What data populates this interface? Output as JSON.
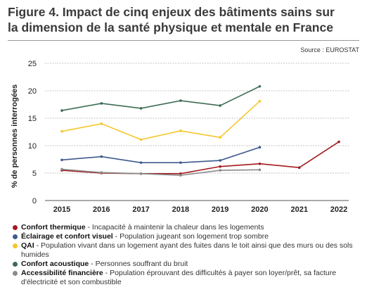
{
  "header": {
    "title_line1": "Figure 4. Impact de cinq enjeux des bâtiments sains sur",
    "title_line2": "la dimension de la santé physique et mentale en France",
    "source": "Source : EUROSTAT"
  },
  "chart_data": {
    "type": "line",
    "title": "Figure 4. Impact de cinq enjeux des bâtiments sains sur la dimension de la santé physique et mentale en France",
    "xlabel": "",
    "ylabel": "% de personnes interrogées",
    "x": [
      "2015",
      "2016",
      "2017",
      "2018",
      "2019",
      "2020",
      "2021",
      "2022"
    ],
    "ylim": [
      0,
      25
    ],
    "yticks": [
      0,
      5,
      10,
      15,
      20,
      25
    ],
    "grid": "horizontal-dotted",
    "legend_position": "bottom",
    "series": [
      {
        "name": "Confort thermique",
        "desc": "Incapacité à maintenir la chaleur dans les logements",
        "color": "#a31a1f",
        "values": [
          5.5,
          5.0,
          4.9,
          4.9,
          6.2,
          6.7,
          6.0,
          10.7
        ]
      },
      {
        "name": "Éclairage et confort visuel",
        "desc": "Population jugeant son logement trop sombre",
        "color": "#3d5a8f",
        "values": [
          7.4,
          8.0,
          6.9,
          6.9,
          7.3,
          9.7,
          null,
          null
        ]
      },
      {
        "name": "QAI",
        "desc": "Population vivant dans un logement ayant des fuites dans le toit ainsi que des murs ou des sols humides",
        "color": "#f5c62b",
        "values": [
          12.6,
          14.0,
          11.1,
          12.7,
          11.5,
          18.1,
          null,
          null
        ]
      },
      {
        "name": "Confort acoustique",
        "desc": "Personnes souffrant du bruit",
        "color": "#3e6b55",
        "values": [
          16.4,
          17.7,
          16.8,
          18.2,
          17.3,
          20.8,
          null,
          null
        ]
      },
      {
        "name": "Accessibilité financière",
        "desc": "Population éprouvant des difficultés à payer son loyer/prêt, sa facture d'électricité et son combustible",
        "color": "#8a8a8a",
        "values": [
          5.7,
          5.1,
          4.9,
          4.6,
          5.5,
          5.6,
          null,
          null
        ]
      }
    ]
  }
}
